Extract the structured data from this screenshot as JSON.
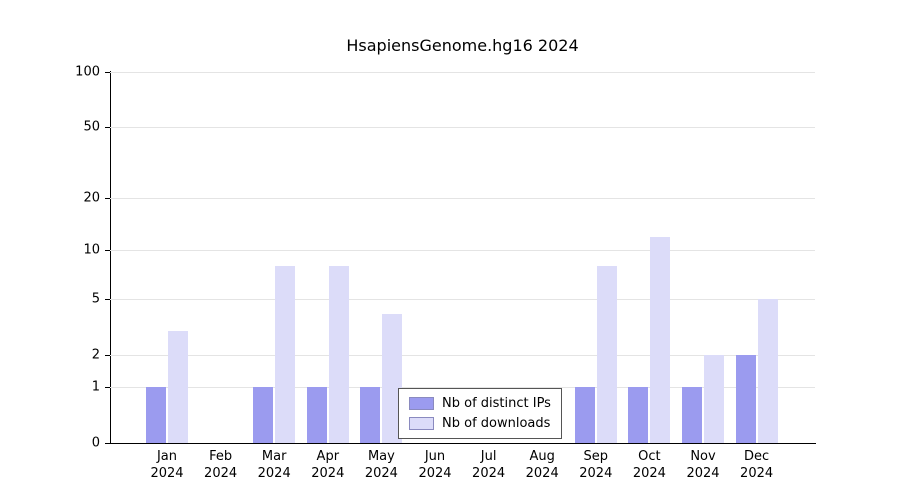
{
  "chart_data": {
    "type": "bar",
    "title": "HsapiensGenome.hg16 2024",
    "xlabel": "",
    "ylabel": "",
    "categories": [
      "Jan",
      "Feb",
      "Mar",
      "Apr",
      "May",
      "Jun",
      "Jul",
      "Aug",
      "Sep",
      "Oct",
      "Nov",
      "Dec"
    ],
    "year_label": "2024",
    "series": [
      {
        "name": "Nb of distinct IPs",
        "color": "#9b9bef",
        "values": [
          1,
          0,
          1,
          1,
          1,
          0,
          0,
          0,
          1,
          1,
          1,
          2
        ]
      },
      {
        "name": "Nb of downloads",
        "color": "#dcdcf9",
        "values": [
          3,
          0,
          8,
          8,
          4,
          0,
          0,
          0,
          8,
          12,
          2,
          5
        ]
      }
    ],
    "yticks": [
      0,
      1,
      2,
      5,
      10,
      20,
      50,
      100
    ],
    "scale": "log1p",
    "ylim": [
      0,
      113
    ],
    "grid": true,
    "legend_position": "bottom-center-inside"
  },
  "colors": {
    "background": "#ffffff",
    "grid": "#e4e4e4",
    "axis": "#000000",
    "legend_border": "#555555",
    "bar_distinct_ips": "#9b9bef",
    "bar_downloads": "#dcdcf9"
  }
}
